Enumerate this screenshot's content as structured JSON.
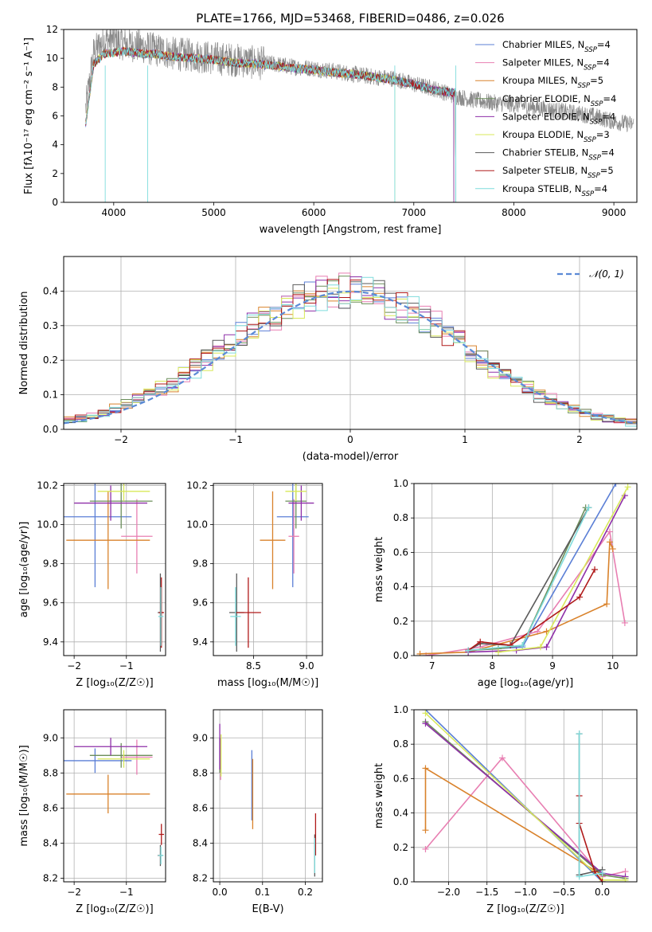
{
  "figure_title": "PLATE=1766, MJD=53468, FIBERID=0486, z=0.026",
  "models": [
    {
      "name": "Chabrier MILES",
      "nssp": "4",
      "color": "#5b7fd6"
    },
    {
      "name": "Salpeter MILES",
      "nssp": "4",
      "color": "#e87fb2"
    },
    {
      "name": "Kroupa MILES",
      "nssp": "5",
      "color": "#d9822b"
    },
    {
      "name": "Chabrier ELODIE",
      "nssp": "4",
      "color": "#6b8e5a"
    },
    {
      "name": "Salpeter ELODIE",
      "nssp": "4",
      "color": "#8e2fa8"
    },
    {
      "name": "Kroupa ELODIE",
      "nssp": "3",
      "color": "#d8e85a"
    },
    {
      "name": "Chabrier STELIB",
      "nssp": "4",
      "color": "#5a5a5a"
    },
    {
      "name": "Salpeter STELIB",
      "nssp": "5",
      "color": "#b01a1a"
    },
    {
      "name": "Kroupa STELIB",
      "nssp": "4",
      "color": "#7fdcdc"
    }
  ],
  "chart_data": [
    {
      "id": "spectrum",
      "type": "line",
      "xlabel": "wavelength [Angstrom, rest frame]",
      "ylabel": "Flux [fλ10⁻¹⁷ erg cm⁻² s⁻¹ A⁻¹]",
      "xlim": [
        3500,
        9230
      ],
      "ylim": [
        0,
        12
      ],
      "xticks": [
        4000,
        5000,
        6000,
        7000,
        8000,
        9000
      ],
      "yticks": [
        0,
        2,
        4,
        6,
        8,
        10,
        12
      ],
      "grid": false,
      "legend_position": "upper-right",
      "data_x": [
        3720,
        3800,
        3900,
        4000,
        4100,
        4200,
        4300,
        4400,
        4500,
        4600,
        4800,
        5000,
        5200,
        5400,
        5600,
        5800,
        6000,
        6200,
        6400,
        6600,
        6800,
        7000,
        7200,
        7400,
        7600,
        7800,
        8000,
        8200,
        8400,
        8600,
        8800,
        9000,
        9200
      ],
      "data_y": [
        6.5,
        10.4,
        11.2,
        11.3,
        11.0,
        10.9,
        10.8,
        10.6,
        10.5,
        10.3,
        10.2,
        10.0,
        9.9,
        9.7,
        9.6,
        9.4,
        9.3,
        9.1,
        8.9,
        8.7,
        8.6,
        8.2,
        7.9,
        7.4,
        7.1,
        6.9,
        6.8,
        6.6,
        6.4,
        6.2,
        6.0,
        5.6,
        5.4
      ],
      "model_x": [
        3720,
        3800,
        3900,
        4000,
        4100,
        4200,
        4300,
        4400,
        4500,
        4600,
        4800,
        5000,
        5200,
        5400,
        5600,
        5800,
        6000,
        6200,
        6400,
        6600,
        6800,
        7000,
        7200,
        7400
      ],
      "model_y": [
        5.5,
        9.6,
        10.3,
        10.4,
        10.5,
        10.4,
        10.3,
        10.3,
        10.2,
        10.1,
        10.0,
        9.9,
        9.7,
        9.6,
        9.5,
        9.3,
        9.2,
        9.0,
        8.9,
        8.7,
        8.5,
        8.2,
        7.8,
        7.6
      ],
      "model_ends": [
        7420,
        7420,
        7420,
        7400,
        7400,
        6810,
        7420,
        7420,
        7420
      ]
    },
    {
      "id": "residuals",
      "type": "step-histogram",
      "xlabel": "(data-model)/error",
      "ylabel": "Normed distribution",
      "xlim": [
        -2.5,
        2.5
      ],
      "ylim": [
        0,
        0.5
      ],
      "xticks": [
        -2,
        -1,
        0,
        1,
        2
      ],
      "yticks": [
        0.0,
        0.1,
        0.2,
        0.3,
        0.4
      ],
      "grid": true,
      "legend": "𝒩(0, 1)",
      "legend_position": "upper-right",
      "bin_width": 0.1,
      "bin_start": -2.5,
      "reference_curve": "normal(0,1)"
    },
    {
      "id": "age-vs-Z",
      "type": "errorbar",
      "xlabel": "Z [log₁₀(Z/Z☉)]",
      "ylabel": "age  [log₁₀(age/yr)]",
      "xlim": [
        -2.2,
        -0.25
      ],
      "ylim": [
        9.33,
        10.21
      ],
      "xticks": [
        -2,
        -1
      ],
      "yticks": [
        9.4,
        9.6,
        9.8,
        10.0,
        10.2
      ],
      "grid": true,
      "points": [
        {
          "x": -1.6,
          "xerr": 0.7,
          "y": 10.04,
          "yerr": 0.36
        },
        {
          "x": -0.8,
          "xerr": 0.3,
          "y": 9.94,
          "yerr": 0.19
        },
        {
          "x": -1.35,
          "xerr": 0.8,
          "y": 9.92,
          "yerr": 0.25
        },
        {
          "x": -1.1,
          "xerr": 0.6,
          "y": 10.12,
          "yerr": 0.14
        },
        {
          "x": -1.3,
          "xerr": 0.7,
          "y": 10.11,
          "yerr": 0.09
        },
        {
          "x": -1.05,
          "xerr": 0.5,
          "y": 10.17,
          "yerr": 0.05
        },
        {
          "x": -0.35,
          "xerr": 0.05,
          "y": 9.55,
          "yerr": 0.2
        },
        {
          "x": -0.33,
          "xerr": 0.05,
          "y": 9.55,
          "yerr": 0.18
        },
        {
          "x": -0.34,
          "xerr": 0.05,
          "y": 9.53,
          "yerr": 0.15
        }
      ]
    },
    {
      "id": "age-vs-mass",
      "type": "errorbar",
      "xlabel": "mass [log₁₀(M/M☉)]",
      "ylabel": "",
      "xlim": [
        8.12,
        9.15
      ],
      "ylim": [
        9.33,
        10.21
      ],
      "xticks": [
        8.5,
        9.0
      ],
      "yticks": [
        9.4,
        9.6,
        9.8,
        10.0,
        10.2
      ],
      "grid": true,
      "points": [
        {
          "x": 8.87,
          "xerr": 0.15,
          "y": 10.04,
          "yerr": 0.36
        },
        {
          "x": 8.88,
          "xerr": 0.05,
          "y": 9.94,
          "yerr": 0.19
        },
        {
          "x": 8.68,
          "xerr": 0.12,
          "y": 9.92,
          "yerr": 0.25
        },
        {
          "x": 8.9,
          "xerr": 0.1,
          "y": 10.12,
          "yerr": 0.14
        },
        {
          "x": 8.95,
          "xerr": 0.12,
          "y": 10.11,
          "yerr": 0.09
        },
        {
          "x": 8.9,
          "xerr": 0.1,
          "y": 10.17,
          "yerr": 0.05
        },
        {
          "x": 8.34,
          "xerr": 0.07,
          "y": 9.55,
          "yerr": 0.2
        },
        {
          "x": 8.45,
          "xerr": 0.12,
          "y": 9.55,
          "yerr": 0.18
        },
        {
          "x": 8.33,
          "xerr": 0.05,
          "y": 9.53,
          "yerr": 0.15
        }
      ]
    },
    {
      "id": "mass-weight-vs-age",
      "type": "line",
      "xlabel": "age  [log₁₀(age/yr)]",
      "ylabel": "mass weight",
      "xlim": [
        6.7,
        10.4
      ],
      "ylim": [
        0,
        1
      ],
      "xticks": [
        7,
        8,
        9,
        10
      ],
      "yticks": [
        0.0,
        0.2,
        0.4,
        0.6,
        0.8,
        1.0
      ],
      "grid": true,
      "series": [
        {
          "x": [
            7.6,
            8.5,
            10.05
          ],
          "y": [
            0.03,
            0.05,
            1.0
          ]
        },
        {
          "x": [
            6.9,
            7.8,
            8.75,
            9.95,
            10.2
          ],
          "y": [
            0.0,
            0.05,
            0.14,
            0.72,
            0.19
          ]
        },
        {
          "x": [
            6.8,
            7.6,
            8.9,
            9.9,
            9.95,
            10.0
          ],
          "y": [
            0.01,
            0.02,
            0.14,
            0.3,
            0.66,
            0.62
          ]
        },
        {
          "x": [
            7.6,
            8.1,
            8.5,
            9.55
          ],
          "y": [
            0.03,
            0.04,
            0.06,
            0.86
          ]
        },
        {
          "x": [
            7.6,
            8.4,
            8.9,
            10.2
          ],
          "y": [
            0.02,
            0.03,
            0.05,
            0.93
          ]
        },
        {
          "x": [
            8.1,
            8.8,
            10.25
          ],
          "y": [
            0.02,
            0.05,
            0.98
          ]
        },
        {
          "x": [
            7.6,
            7.8,
            8.3,
            9.6
          ],
          "y": [
            0.03,
            0.07,
            0.06,
            0.86
          ]
        },
        {
          "x": [
            7.6,
            7.8,
            8.3,
            9.45,
            9.7
          ],
          "y": [
            0.03,
            0.08,
            0.06,
            0.34,
            0.5
          ]
        },
        {
          "x": [
            7.6,
            8.5,
            9.6
          ],
          "y": [
            0.03,
            0.06,
            0.86
          ]
        }
      ]
    },
    {
      "id": "mass-vs-Z",
      "type": "errorbar",
      "xlabel": "Z [log₁₀(Z/Z☉)]",
      "ylabel": "mass [log₁₀(M/M☉)]",
      "xlim": [
        -2.2,
        -0.25
      ],
      "ylim": [
        8.18,
        9.16
      ],
      "xticks": [
        -2,
        -1
      ],
      "yticks": [
        8.2,
        8.4,
        8.6,
        8.8,
        9.0
      ],
      "grid": true,
      "points": [
        {
          "x": -1.6,
          "xerr": 0.7,
          "y": 8.87,
          "yerr": 0.07
        },
        {
          "x": -0.8,
          "xerr": 0.3,
          "y": 8.89,
          "yerr": 0.1
        },
        {
          "x": -1.35,
          "xerr": 0.8,
          "y": 8.68,
          "yerr": 0.11
        },
        {
          "x": -1.1,
          "xerr": 0.6,
          "y": 8.9,
          "yerr": 0.07
        },
        {
          "x": -1.3,
          "xerr": 0.7,
          "y": 8.95,
          "yerr": 0.05
        },
        {
          "x": -1.05,
          "xerr": 0.5,
          "y": 8.88,
          "yerr": 0.05
        },
        {
          "x": -0.35,
          "xerr": 0.05,
          "y": 8.33,
          "yerr": 0.06
        },
        {
          "x": -0.33,
          "xerr": 0.05,
          "y": 8.45,
          "yerr": 0.06
        },
        {
          "x": -0.34,
          "xerr": 0.05,
          "y": 8.33,
          "yerr": 0.05
        }
      ]
    },
    {
      "id": "mass-vs-EBV",
      "type": "errorbar",
      "xlabel": "E(B-V)",
      "ylabel": "",
      "xlim": [
        -0.015,
        0.24
      ],
      "ylim": [
        8.18,
        9.16
      ],
      "xticks": [
        0.0,
        0.1,
        0.2
      ],
      "yticks": [
        8.2,
        8.4,
        8.6,
        8.8,
        9.0
      ],
      "grid": true,
      "points": [
        {
          "x": 0.075,
          "y": 8.73,
          "yerr": 0.2
        },
        {
          "x": 0.002,
          "y": 8.88,
          "yerr": 0.12
        },
        {
          "x": 0.077,
          "y": 8.68,
          "yerr": 0.2
        },
        {
          "x": 0.0,
          "y": 8.9,
          "yerr": 0.1
        },
        {
          "x": 0.0,
          "y": 8.95,
          "yerr": 0.13
        },
        {
          "x": 0.003,
          "y": 8.9,
          "yerr": 0.12
        },
        {
          "x": 0.222,
          "y": 8.33,
          "yerr": 0.12
        },
        {
          "x": 0.224,
          "y": 8.45,
          "yerr": 0.12
        },
        {
          "x": 0.222,
          "y": 8.33,
          "yerr": 0.1
        }
      ]
    },
    {
      "id": "mass-weight-vs-Z",
      "type": "line",
      "xlabel": "Z [log₁₀(Z/Z☉)]",
      "ylabel": "mass weight",
      "xlim": [
        -2.45,
        0.45
      ],
      "ylim": [
        0,
        1
      ],
      "xticks": [
        -2.0,
        -1.5,
        -1.0,
        -0.5,
        0.0
      ],
      "yticks": [
        0.0,
        0.2,
        0.4,
        0.6,
        0.8,
        1.0
      ],
      "grid": true,
      "series": [
        {
          "x": [
            -2.3,
            0.0
          ],
          "y": [
            1.0,
            0.0
          ]
        },
        {
          "x": [
            -2.3,
            -1.3,
            0.0,
            0.3
          ],
          "y": [
            0.19,
            0.72,
            0.03,
            0.06
          ]
        },
        {
          "x": [
            -2.3,
            -2.3,
            0.0
          ],
          "y": [
            0.3,
            0.66,
            0.04
          ]
        },
        {
          "x": [
            -2.3,
            0.0,
            0.3
          ],
          "y": [
            0.93,
            0.04,
            0.02
          ]
        },
        {
          "x": [
            -2.3,
            0.0,
            0.3
          ],
          "y": [
            0.92,
            0.05,
            0.03
          ]
        },
        {
          "x": [
            -2.3,
            0.0,
            0.3
          ],
          "y": [
            0.98,
            0.01,
            0.01
          ]
        },
        {
          "x": [
            -0.3,
            -0.3,
            0.0
          ],
          "y": [
            0.86,
            0.04,
            0.07
          ]
        },
        {
          "x": [
            -0.3,
            -0.3,
            -0.1,
            0.0
          ],
          "y": [
            0.5,
            0.34,
            0.06,
            0.0
          ]
        },
        {
          "x": [
            -0.3,
            -0.3,
            0.0
          ],
          "y": [
            0.86,
            0.03,
            0.05
          ]
        }
      ]
    }
  ]
}
